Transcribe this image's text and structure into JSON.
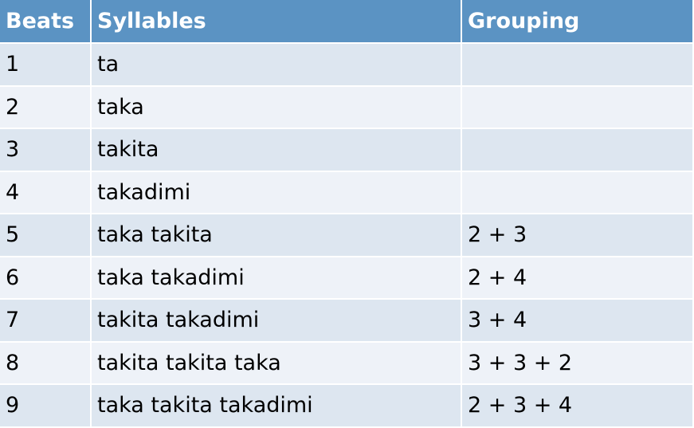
{
  "table": {
    "headers": {
      "beats": "Beats",
      "syllables": "Syllables",
      "grouping": "Grouping"
    },
    "rows": [
      {
        "beats": "1",
        "syllables": "ta",
        "grouping": ""
      },
      {
        "beats": "2",
        "syllables": "taka",
        "grouping": ""
      },
      {
        "beats": "3",
        "syllables": "takita",
        "grouping": ""
      },
      {
        "beats": "4",
        "syllables": "takadimi",
        "grouping": ""
      },
      {
        "beats": "5",
        "syllables": "taka takita",
        "grouping": "2 + 3"
      },
      {
        "beats": "6",
        "syllables": "taka takadimi",
        "grouping": "2 + 4"
      },
      {
        "beats": "7",
        "syllables": "takita takadimi",
        "grouping": "3 + 4"
      },
      {
        "beats": "8",
        "syllables": "takita takita taka",
        "grouping": "3 + 3 + 2"
      },
      {
        "beats": "9",
        "syllables": "taka takita takadimi",
        "grouping": "2 + 3 + 4"
      }
    ],
    "colors": {
      "header_bg": "#5b93c3",
      "header_text": "#ffffff",
      "row_odd_bg": "#dde6f0",
      "row_even_bg": "#eef2f8"
    }
  }
}
